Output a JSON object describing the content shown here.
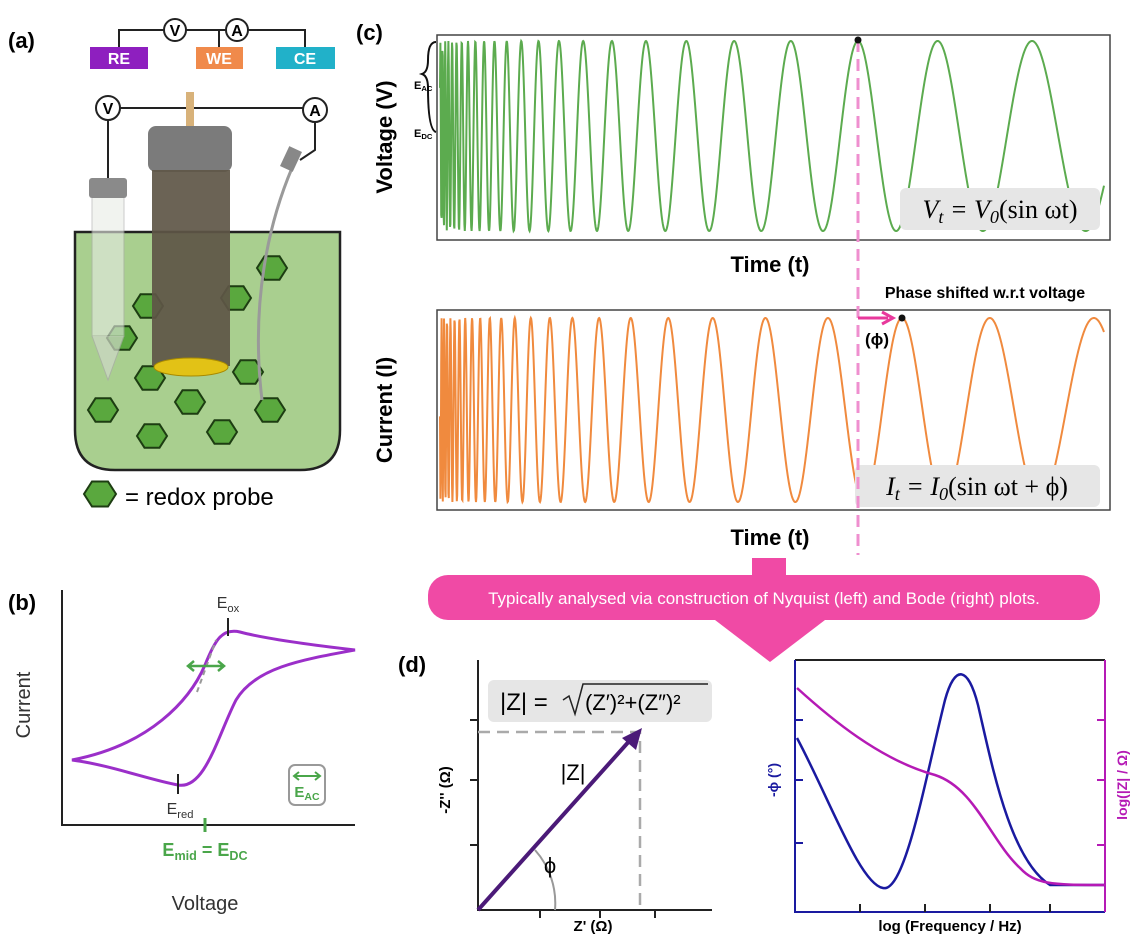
{
  "panel_a": {
    "label": "(a)",
    "meter_top_v": "V",
    "meter_top_a": "A",
    "re": "RE",
    "we": "WE",
    "ce": "CE",
    "meter_v": "V",
    "meter_a": "A",
    "legend": "= redox probe"
  },
  "panel_b": {
    "label": "(b)",
    "y_axis": "Current",
    "x_axis": "Voltage",
    "e_ox": [
      "E",
      "ox"
    ],
    "e_red": [
      "E",
      "red"
    ],
    "e_mid": [
      "E",
      "mid",
      " = E",
      "DC"
    ],
    "e_ac": [
      "E",
      "AC"
    ]
  },
  "panel_c": {
    "label": "(c)",
    "voltage_axis": "Voltage (V)",
    "voltage_time": "Time (t)",
    "bracket_ac": [
      "E",
      "AC"
    ],
    "bracket_dc": [
      "E",
      "DC"
    ],
    "voltage_eq": [
      "V",
      "t",
      " = V",
      "0",
      "(sin ωt)"
    ],
    "phase_note": "Phase shifted w.r.t voltage",
    "phase_symbol": "(ϕ)",
    "current_axis": "Current (I)",
    "current_time": "Time (t)",
    "current_eq": [
      "I",
      "t",
      " = I",
      "0",
      "(sin ωt + ϕ)"
    ]
  },
  "banner": "Typically analysed via construction of Nyquist (left) and Bode (right) plots.",
  "panel_d": {
    "label": "(d)",
    "formula_lhs": "|Z| =",
    "formula_radicand": "(Z′)²+(Z″)²",
    "nyquist_y": "-Z'' (Ω)",
    "nyquist_x": "Z' (Ω)",
    "z_label": "|Z|",
    "phi_label": "ϕ",
    "bode_left": "-ϕ (°)",
    "bode_right": "log(|Z| / Ω)",
    "bode_x": "log (Frequency / Hz)"
  }
}
